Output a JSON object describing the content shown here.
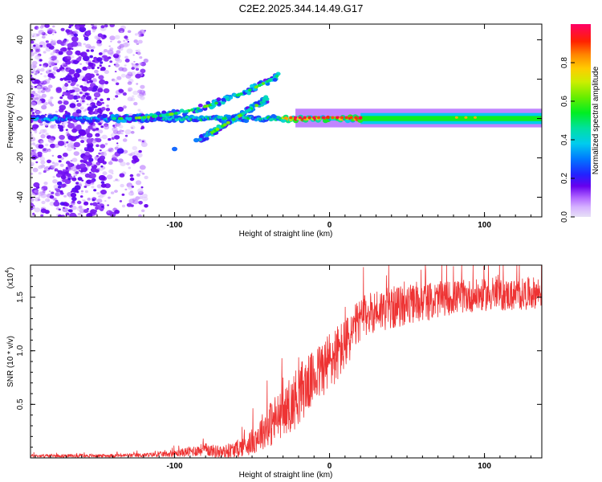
{
  "title": "C2E2.2025.344.14.49.G17",
  "chart_data": [
    {
      "type": "heatmap",
      "name": "spectrogram",
      "xlabel": "Height of straight line (km)",
      "ylabel": "Frequency (Hz)",
      "xlim": [
        -193,
        137
      ],
      "ylim": [
        -50,
        48
      ],
      "x_ticks": [
        -100,
        0,
        100
      ],
      "y_ticks": [
        -40,
        -20,
        0,
        20,
        40
      ],
      "colorbar": {
        "label": "Normalized spectral amplitude",
        "range": [
          0.0,
          1.0
        ],
        "ticks": [
          0.0,
          0.2,
          0.4,
          0.6,
          0.8
        ],
        "tick_labels": [
          "0.0",
          "0.2",
          "0.4",
          "0.6",
          "0.8"
        ]
      },
      "features": [
        {
          "name": "carrier",
          "x_range": [
            -193,
            137
          ],
          "frequency": 0,
          "amplitude": [
            0.2,
            1.0
          ]
        },
        {
          "name": "upper drift branch",
          "x_from": -140,
          "x_to": -33,
          "freq_from": 0,
          "freq_to": 22
        },
        {
          "name": "lower drift branch",
          "x_from": -84,
          "x_to": -40,
          "freq_from": -11,
          "freq_to": 10
        },
        {
          "name": "scatter region",
          "x_range": [
            -193,
            -120
          ],
          "freq_range": [
            -50,
            48
          ]
        }
      ]
    },
    {
      "type": "line",
      "name": "snr",
      "xlabel": "Height of straight line (km)",
      "ylabel": "SNR (10 * v/v)",
      "y_multiplier": "(x10",
      "y_multiplier_exp": "4",
      "xlim": [
        -193,
        137
      ],
      "ylim": [
        0,
        1.8
      ],
      "x_ticks": [
        -100,
        0,
        100
      ],
      "y_ticks": [
        0.5,
        1.0,
        1.5
      ],
      "y_tick_labels": [
        "0.5",
        "1.0",
        "1.5"
      ],
      "color": "#ee3333",
      "series": [
        {
          "name": "SNR",
          "envelope_x": [
            -193,
            -150,
            -120,
            -100,
            -90,
            -80,
            -70,
            -60,
            -50,
            -40,
            -35,
            -30,
            -25,
            -20,
            -10,
            0,
            10,
            20,
            30,
            40,
            60,
            80,
            100,
            120,
            137
          ],
          "envelope_mean": [
            0.02,
            0.02,
            0.025,
            0.04,
            0.06,
            0.08,
            0.05,
            0.08,
            0.15,
            0.3,
            0.35,
            0.42,
            0.48,
            0.6,
            0.75,
            0.9,
            1.05,
            1.3,
            1.38,
            1.4,
            1.45,
            1.5,
            1.52,
            1.52,
            1.55
          ],
          "envelope_noise": [
            0.015,
            0.015,
            0.02,
            0.03,
            0.05,
            0.06,
            0.06,
            0.08,
            0.12,
            0.2,
            0.25,
            0.2,
            0.25,
            0.3,
            0.25,
            0.3,
            0.25,
            0.2,
            0.2,
            0.2,
            0.18,
            0.16,
            0.15,
            0.15,
            0.15
          ]
        }
      ]
    }
  ]
}
